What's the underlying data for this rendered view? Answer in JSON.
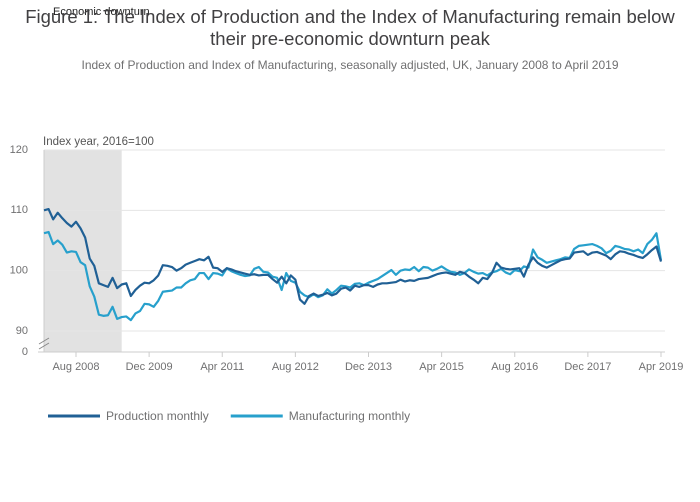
{
  "chart_data": {
    "type": "line",
    "title": "Figure 1: The Index of Production and the Index of Manufacturing remain below their pre-economic downturn peak",
    "subtitle": "Index of Production and Index of Manufacturing, seasonally adjusted, UK, January 2008 to April 2019",
    "y_label": "Index year, 2016=100",
    "shade": {
      "label": "Economic downturn",
      "from": "Jan 2008",
      "to": "Jun 2009",
      "color": "#e2e2e2"
    },
    "categories": [
      "Jan 2008",
      "Feb 2008",
      "Mar 2008",
      "Apr 2008",
      "May 2008",
      "Jun 2008",
      "Jul 2008",
      "Aug 2008",
      "Sep 2008",
      "Oct 2008",
      "Nov 2008",
      "Dec 2008",
      "Jan 2009",
      "Feb 2009",
      "Mar 2009",
      "Apr 2009",
      "May 2009",
      "Jun 2009",
      "Jul 2009",
      "Aug 2009",
      "Sep 2009",
      "Oct 2009",
      "Nov 2009",
      "Dec 2009",
      "Jan 2010",
      "Feb 2010",
      "Mar 2010",
      "Apr 2010",
      "May 2010",
      "Jun 2010",
      "Jul 2010",
      "Aug 2010",
      "Sep 2010",
      "Oct 2010",
      "Nov 2010",
      "Dec 2010",
      "Jan 2011",
      "Feb 2011",
      "Mar 2011",
      "Apr 2011",
      "May 2011",
      "Jun 2011",
      "Jul 2011",
      "Aug 2011",
      "Sep 2011",
      "Oct 2011",
      "Nov 2011",
      "Dec 2011",
      "Jan 2012",
      "Feb 2012",
      "Mar 2012",
      "Apr 2012",
      "May 2012",
      "Jun 2012",
      "Jul 2012",
      "Aug 2012",
      "Sep 2012",
      "Oct 2012",
      "Nov 2012",
      "Dec 2012",
      "Jan 2013",
      "Feb 2013",
      "Mar 2013",
      "Apr 2013",
      "May 2013",
      "Jun 2013",
      "Jul 2013",
      "Aug 2013",
      "Sep 2013",
      "Oct 2013",
      "Nov 2013",
      "Dec 2013",
      "Jan 2014",
      "Feb 2014",
      "Mar 2014",
      "Apr 2014",
      "May 2014",
      "Jun 2014",
      "Jul 2014",
      "Aug 2014",
      "Sep 2014",
      "Oct 2014",
      "Nov 2014",
      "Dec 2014",
      "Jan 2015",
      "Feb 2015",
      "Mar 2015",
      "Apr 2015",
      "May 2015",
      "Jun 2015",
      "Jul 2015",
      "Aug 2015",
      "Sep 2015",
      "Oct 2015",
      "Nov 2015",
      "Dec 2015",
      "Jan 2016",
      "Feb 2016",
      "Mar 2016",
      "Apr 2016",
      "May 2016",
      "Jun 2016",
      "Jul 2016",
      "Aug 2016",
      "Sep 2016",
      "Oct 2016",
      "Nov 2016",
      "Dec 2016",
      "Jan 2017",
      "Feb 2017",
      "Mar 2017",
      "Apr 2017",
      "May 2017",
      "Jun 2017",
      "Jul 2017",
      "Aug 2017",
      "Sep 2017",
      "Oct 2017",
      "Nov 2017",
      "Dec 2017",
      "Jan 2018",
      "Feb 2018",
      "Mar 2018",
      "Apr 2018",
      "May 2018",
      "Jun 2018",
      "Jul 2018",
      "Aug 2018",
      "Sep 2018",
      "Oct 2018",
      "Nov 2018",
      "Dec 2018",
      "Jan 2019",
      "Feb 2019",
      "Mar 2019",
      "Apr 2019"
    ],
    "xticks": [
      "Aug 2008",
      "Dec 2009",
      "Apr 2011",
      "Aug 2012",
      "Dec 2013",
      "Apr 2015",
      "Aug 2016",
      "Dec 2017",
      "Apr 2019"
    ],
    "series": [
      {
        "name": "Production monthly",
        "color": "#206095",
        "values": [
          110,
          110.2,
          108.5,
          109.6,
          108.7,
          107.9,
          107.3,
          108.1,
          107,
          105.5,
          102,
          100.8,
          97.9,
          97.6,
          97.3,
          98.8,
          97.1,
          97.7,
          97.9,
          95.8,
          96.8,
          97.5,
          98,
          97.9,
          98.4,
          99.2,
          100.9,
          100.8,
          100.6,
          100,
          100.4,
          101,
          101.3,
          101.6,
          101.9,
          101.7,
          102.3,
          100.5,
          100.4,
          99.8,
          100.4,
          100.2,
          99.9,
          99.7,
          99.5,
          99.3,
          99.4,
          99.2,
          99.3,
          99.3,
          98.6,
          98,
          99,
          97.9,
          99.2,
          98.5,
          95.2,
          94.5,
          95.8,
          96.2,
          95.8,
          96,
          96.3,
          95.9,
          96.2,
          97,
          97.2,
          96.7,
          97.5,
          97.3,
          97.6,
          97.6,
          97.3,
          97.7,
          97.9,
          97.9,
          98,
          98.1,
          98.5,
          98.2,
          98.4,
          98.3,
          98.6,
          98.7,
          98.8,
          99.1,
          99.4,
          99.6,
          99.7,
          99.5,
          99.3,
          99.8,
          99.6,
          99,
          98.5,
          97.9,
          98.8,
          98.6,
          99.6,
          101.3,
          100.5,
          100.3,
          100.2,
          100.3,
          100.4,
          99,
          101,
          102.2,
          101.3,
          100.8,
          100.5,
          100.9,
          101.3,
          101.7,
          101.9,
          102,
          103,
          103.1,
          103.2,
          102.6,
          103,
          103.1,
          102.8,
          102.5,
          101.9,
          102.7,
          103.2,
          103.1,
          102.8,
          102.6,
          102.3,
          102.1,
          102.7,
          103.4,
          104,
          101.5
        ]
      },
      {
        "name": "Manufacturing monthly",
        "color": "#27a0cc",
        "values": [
          106.2,
          106.4,
          104.4,
          105,
          104.3,
          103,
          103.2,
          103.1,
          101.4,
          100.9,
          97.4,
          95.7,
          92.7,
          92.5,
          92.6,
          94,
          92,
          92.3,
          92.4,
          91.8,
          92.9,
          93.3,
          94.5,
          94.4,
          94,
          95,
          96.5,
          96.6,
          96.7,
          97.2,
          97.2,
          97.9,
          98.4,
          98.6,
          99.6,
          99.6,
          98.6,
          99.6,
          99.5,
          99.2,
          100.4,
          99.9,
          99.6,
          99.3,
          99.1,
          99.2,
          100.3,
          100.6,
          99.8,
          99.7,
          99,
          98.8,
          96.8,
          99.6,
          98.3,
          98,
          96.5,
          95.9,
          95.6,
          96.1,
          95.6,
          95.9,
          96.9,
          96.2,
          96.8,
          97.5,
          97.4,
          97.2,
          97.8,
          97.9,
          97.6,
          98,
          98.3,
          98.6,
          99.1,
          99.6,
          100.1,
          99.3,
          100,
          100.2,
          100.1,
          100.6,
          99.9,
          100.6,
          100.5,
          100,
          100.3,
          100.7,
          100.2,
          99.8,
          99.7,
          99.3,
          99.6,
          100.2,
          99.8,
          99.5,
          99.6,
          99.2,
          99.7,
          99.9,
          100.3,
          99.7,
          99.4,
          100.1,
          99.9,
          100.7,
          100.5,
          103.5,
          102.2,
          101.8,
          101.3,
          101.5,
          101.7,
          101.9,
          102.2,
          102.1,
          103.6,
          104.1,
          104.2,
          104.3,
          104.4,
          104.1,
          103.7,
          102.9,
          103.3,
          104.1,
          103.9,
          103.6,
          103.5,
          103.2,
          103.5,
          102.9,
          104.4,
          105.1,
          106.2,
          101.7
        ]
      }
    ],
    "ylim": [
      88,
      120
    ],
    "yticks": [
      0,
      90,
      100,
      110,
      120
    ],
    "axis_break": true,
    "grid": true,
    "legend": "bottom-left"
  }
}
